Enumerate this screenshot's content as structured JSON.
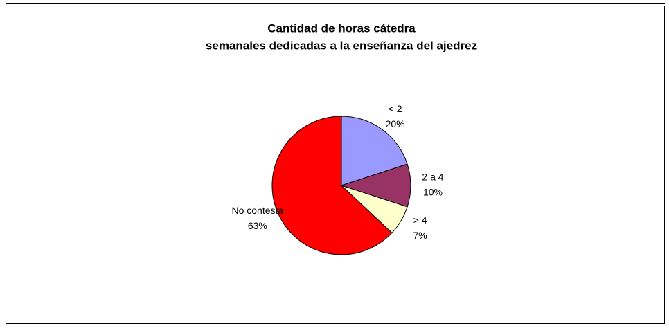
{
  "chart_data": {
    "type": "pie",
    "title": [
      "Cantidad de horas cátedra",
      "semanales dedicadas a la enseñanza del ajedrez"
    ],
    "categories": [
      "< 2",
      "2 a 4",
      "> 4",
      "No contesta"
    ],
    "values": [
      20,
      10,
      7,
      63
    ],
    "value_labels": [
      "20%",
      "10%",
      "7%",
      "63%"
    ],
    "colors": [
      "#9999ff",
      "#993366",
      "#ffffcc",
      "#ff0000"
    ]
  }
}
